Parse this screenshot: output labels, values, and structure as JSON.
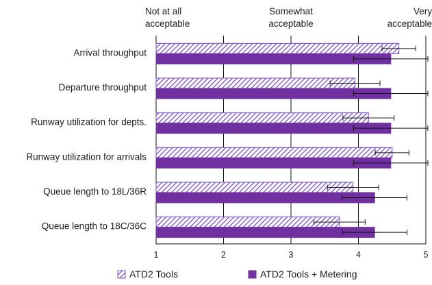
{
  "chart_data": {
    "type": "bar",
    "orientation": "horizontal",
    "categories": [
      "Arrival throughput",
      "Departure throughput",
      "Runway utilization for depts.",
      "Runway utilization for arrivals",
      "Queue length to 18L/36R",
      "Queue length to 18C/36C"
    ],
    "series": [
      {
        "name": "ATD2 Tools",
        "pattern": "hatched",
        "color": "#7a4fcf",
        "values": [
          4.6,
          3.95,
          4.15,
          4.5,
          3.92,
          3.72
        ],
        "error": [
          0.25,
          0.37,
          0.38,
          0.25,
          0.38,
          0.38
        ]
      },
      {
        "name": "ATD2 Tools + Metering",
        "pattern": "solid",
        "color": "#7030a0",
        "values": [
          4.48,
          4.48,
          4.48,
          4.48,
          4.24,
          4.24
        ],
        "error": [
          0.55,
          0.55,
          0.55,
          0.55,
          0.48,
          0.48
        ]
      }
    ],
    "xlim": [
      1,
      5
    ],
    "xticks": [
      "1",
      "2",
      "3",
      "4",
      "5"
    ],
    "scale_labels": [
      {
        "value": 1,
        "lines": [
          "Not at all",
          "acceptable"
        ]
      },
      {
        "value": 3,
        "lines": [
          "Somewhat",
          "acceptable"
        ]
      },
      {
        "value": 5,
        "lines": [
          "Very",
          "acceptable"
        ]
      }
    ],
    "grid": true,
    "legend": "bottom"
  }
}
